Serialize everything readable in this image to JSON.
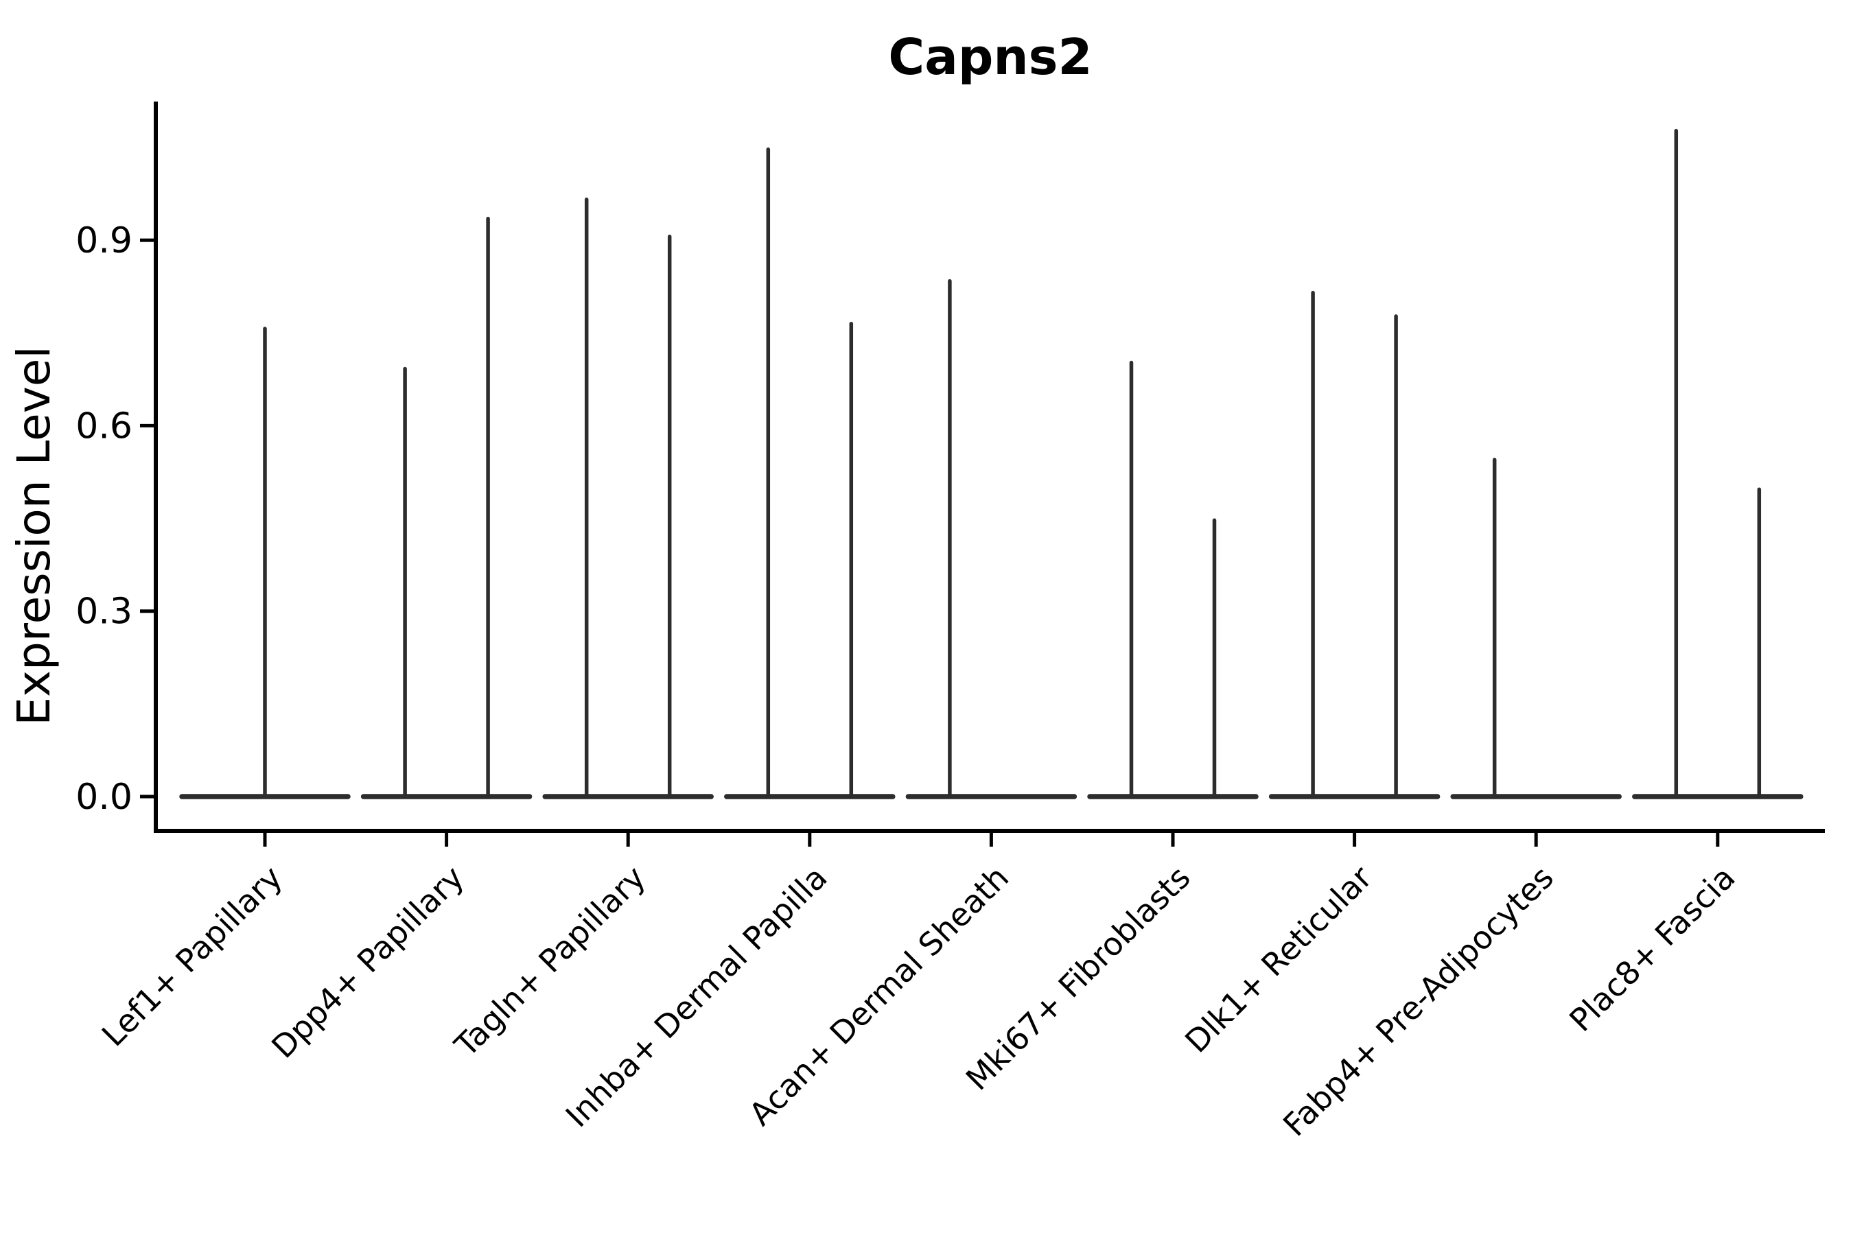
{
  "chart_data": {
    "type": "violin",
    "title": "Capns2",
    "xlabel": "",
    "ylabel": "Expression Level",
    "ylim": [
      -0.06,
      1.13
    ],
    "yticks": [
      0.0,
      0.3,
      0.6,
      0.9
    ],
    "ytick_labels": [
      "0.0",
      "0.3",
      "0.6",
      "0.9"
    ],
    "grid": false,
    "legend": "none",
    "categories": [
      "Lef1+ Papillary",
      "Dpp4+ Papillary",
      "Tagln+ Papillary",
      "Inhba+ Dermal Papilla",
      "Acan+ Dermal Sheath",
      "Mki67+ Fibroblasts",
      "Dlk1+ Reticular",
      "Fabp4+ Pre-Adipocytes",
      "Plac8+ Fascia"
    ],
    "violins": [
      {
        "category": "Lef1+ Papillary",
        "items": [
          {
            "pos": "center",
            "base": 0.0,
            "max": 0.757
          }
        ]
      },
      {
        "category": "Dpp4+ Papillary",
        "items": [
          {
            "pos": "left",
            "base": 0.0,
            "max": 0.692
          },
          {
            "pos": "right",
            "base": 0.0,
            "max": 0.935
          }
        ]
      },
      {
        "category": "Tagln+ Papillary",
        "items": [
          {
            "pos": "left",
            "base": 0.0,
            "max": 0.966
          },
          {
            "pos": "right",
            "base": 0.0,
            "max": 0.906
          }
        ]
      },
      {
        "category": "Inhba+ Dermal Papilla",
        "items": [
          {
            "pos": "left",
            "base": 0.0,
            "max": 1.047
          },
          {
            "pos": "right",
            "base": 0.0,
            "max": 0.765
          }
        ]
      },
      {
        "category": "Acan+ Dermal Sheath",
        "items": [
          {
            "pos": "left",
            "base": 0.0,
            "max": 0.834
          }
        ]
      },
      {
        "category": "Mki67+ Fibroblasts",
        "items": [
          {
            "pos": "left",
            "base": 0.0,
            "max": 0.702
          },
          {
            "pos": "right",
            "base": 0.0,
            "max": 0.447
          }
        ]
      },
      {
        "category": "Dlk1+ Reticular",
        "items": [
          {
            "pos": "left",
            "base": 0.0,
            "max": 0.815
          },
          {
            "pos": "right",
            "base": 0.0,
            "max": 0.777
          }
        ]
      },
      {
        "category": "Fabp4+ Pre-Adipocytes",
        "items": [
          {
            "pos": "left",
            "base": 0.0,
            "max": 0.545
          }
        ]
      },
      {
        "category": "Plac8+ Fascia",
        "items": [
          {
            "pos": "left",
            "base": 0.0,
            "max": 1.077
          },
          {
            "pos": "right",
            "base": 0.0,
            "max": 0.497
          }
        ]
      }
    ],
    "colors": {
      "violin": "#2d2d2d",
      "axis": "#000000",
      "text": "#000000",
      "background": "#ffffff"
    }
  }
}
